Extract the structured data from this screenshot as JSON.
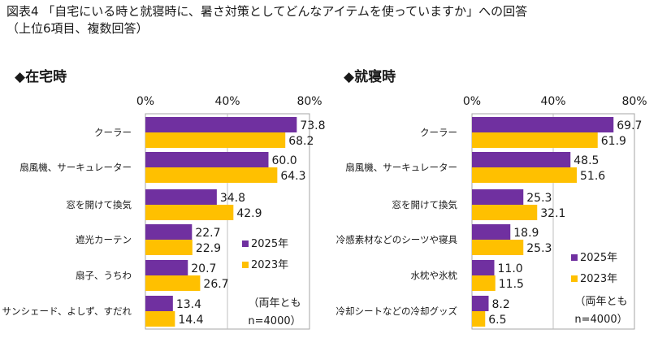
{
  "title": {
    "line1": "図表4 「自宅にいる時と就寝時に、暑さ対策としてどんなアイテムを使っていますか」への回答",
    "line2": "（上位6項目、複数回答）"
  },
  "colors": {
    "2025年": "#7030a0",
    "2023年": "#ffc000"
  },
  "chart_data": [
    {
      "type": "bar",
      "orientation": "horizontal",
      "title": "◆在宅時",
      "categories": [
        "クーラー",
        "扇風機、サーキュレーター",
        "窓を開けて換気",
        "遮光カーテン",
        "扇子、うちわ",
        "サンシェード、よしず、すだれ"
      ],
      "series": [
        {
          "name": "2025年",
          "values": [
            73.8,
            60.0,
            34.8,
            22.7,
            20.7,
            13.4
          ],
          "labels": [
            "73.8",
            "60.0",
            "34.8",
            "22.7",
            "20.7",
            "13.4"
          ]
        },
        {
          "name": "2023年",
          "values": [
            68.2,
            64.3,
            42.9,
            22.9,
            26.7,
            14.4
          ],
          "labels": [
            "68.2",
            "64.3",
            "42.9",
            "22.9",
            "26.7",
            "14.4"
          ]
        }
      ],
      "xlim": [
        0,
        80
      ],
      "ticks": [
        "0%",
        "40%",
        "80%"
      ],
      "grid": true,
      "legend_position": "bottom-right",
      "note": [
        "（両年とも",
        "n=4000）"
      ]
    },
    {
      "type": "bar",
      "orientation": "horizontal",
      "title": "◆就寝時",
      "categories": [
        "クーラー",
        "扇風機、サーキュレーター",
        "窓を開けて換気",
        "冷感素材などのシーツや寝具",
        "水枕や氷枕",
        "冷却シートなどの冷却グッズ"
      ],
      "series": [
        {
          "name": "2025年",
          "values": [
            69.7,
            48.5,
            25.3,
            18.9,
            11.0,
            8.2
          ],
          "labels": [
            "69.7",
            "48.5",
            "25.3",
            "18.9",
            "11.0",
            "8.2"
          ]
        },
        {
          "name": "2023年",
          "values": [
            61.9,
            51.6,
            32.1,
            25.3,
            11.5,
            6.5
          ],
          "labels": [
            "61.9",
            "51.6",
            "32.1",
            "25.3",
            "11.5",
            "6.5"
          ]
        }
      ],
      "xlim": [
        0,
        80
      ],
      "ticks": [
        "0%",
        "40%",
        "80%"
      ],
      "grid": true,
      "legend_position": "bottom-right",
      "note": [
        "（両年とも",
        "n=4000）"
      ]
    }
  ]
}
